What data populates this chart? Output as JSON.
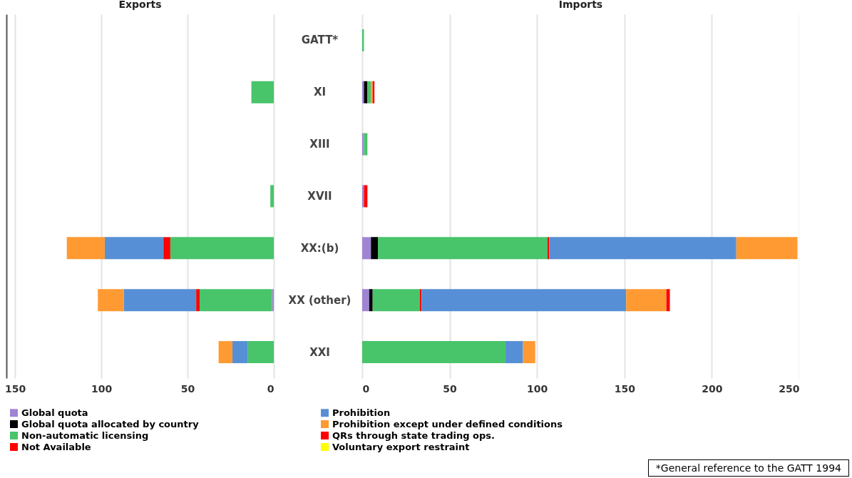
{
  "chart_data": [
    {
      "type": "bar",
      "orientation": "horizontal",
      "stacked": true,
      "title": "Exports",
      "grid": "x",
      "categories": [
        "GATT*",
        "XI",
        "XIII",
        "XVII",
        "XX:(b)",
        "XX (other)",
        "XXI"
      ],
      "xlim": [
        155,
        0
      ],
      "xticks": [
        150,
        100,
        50,
        0
      ],
      "series": [
        {
          "color": "#a084d4",
          "values": [
            null,
            null,
            null,
            null,
            null,
            1,
            null
          ]
        },
        {
          "color": "#000000",
          "values": [
            null,
            null,
            null,
            null,
            null,
            null,
            null
          ]
        },
        {
          "color": "#48c46a",
          "values": [
            null,
            13,
            null,
            2,
            60,
            42,
            15
          ]
        },
        {
          "color": "#ff0000",
          "values": [
            null,
            null,
            null,
            null,
            4,
            2,
            null
          ]
        },
        {
          "color": "#568fd5",
          "values": [
            null,
            null,
            null,
            null,
            34,
            42,
            9
          ]
        },
        {
          "color": "#ff9a33",
          "values": [
            null,
            null,
            null,
            null,
            22,
            15,
            8
          ]
        },
        {
          "color": "#ff0000",
          "values": [
            null,
            null,
            null,
            null,
            null,
            null,
            null
          ]
        },
        {
          "color": "#ffff00",
          "values": [
            null,
            null,
            null,
            null,
            null,
            null,
            null
          ]
        }
      ]
    },
    {
      "type": "bar",
      "orientation": "horizontal",
      "stacked": true,
      "title": "Imports",
      "legend": "bottom",
      "grid": "x",
      "tick_labels": "x",
      "categories": [
        null,
        null,
        null,
        null,
        null,
        null,
        null
      ],
      "xlim": [
        0,
        250
      ],
      "xticks": [
        0,
        50,
        100,
        150,
        200,
        250
      ],
      "annotations": [
        "*General reference to the GATT 1994"
      ],
      "series": [
        {
          "name": "Global quota",
          "color": "#a084d4",
          "values": [
            null,
            1,
            1,
            1,
            5,
            4,
            null
          ]
        },
        {
          "name": "Global quota allocated by country",
          "color": "#000000",
          "values": [
            null,
            2,
            null,
            null,
            4,
            2,
            null
          ]
        },
        {
          "name": "Non-automatic licensing",
          "color": "#48c46a",
          "values": [
            1,
            2,
            2,
            null,
            97,
            27,
            82
          ]
        },
        {
          "name": "Not Available",
          "color": "#ff0000",
          "values": [
            null,
            null,
            null,
            null,
            1,
            1,
            null
          ]
        },
        {
          "name": "Prohibition",
          "color": "#568fd5",
          "values": [
            null,
            null,
            null,
            null,
            107,
            117,
            10
          ]
        },
        {
          "name": "Prohibition except under defined conditions",
          "color": "#ff9a33",
          "values": [
            null,
            1,
            null,
            null,
            35,
            23,
            7
          ]
        },
        {
          "name": "QRs through state trading ops.",
          "color": "#ff0000",
          "values": [
            null,
            1,
            null,
            2,
            null,
            2,
            null
          ]
        },
        {
          "name": "Voluntary export restraint",
          "color": "#ffff00",
          "values": [
            null,
            null,
            null,
            null,
            null,
            null,
            null
          ]
        }
      ]
    }
  ]
}
